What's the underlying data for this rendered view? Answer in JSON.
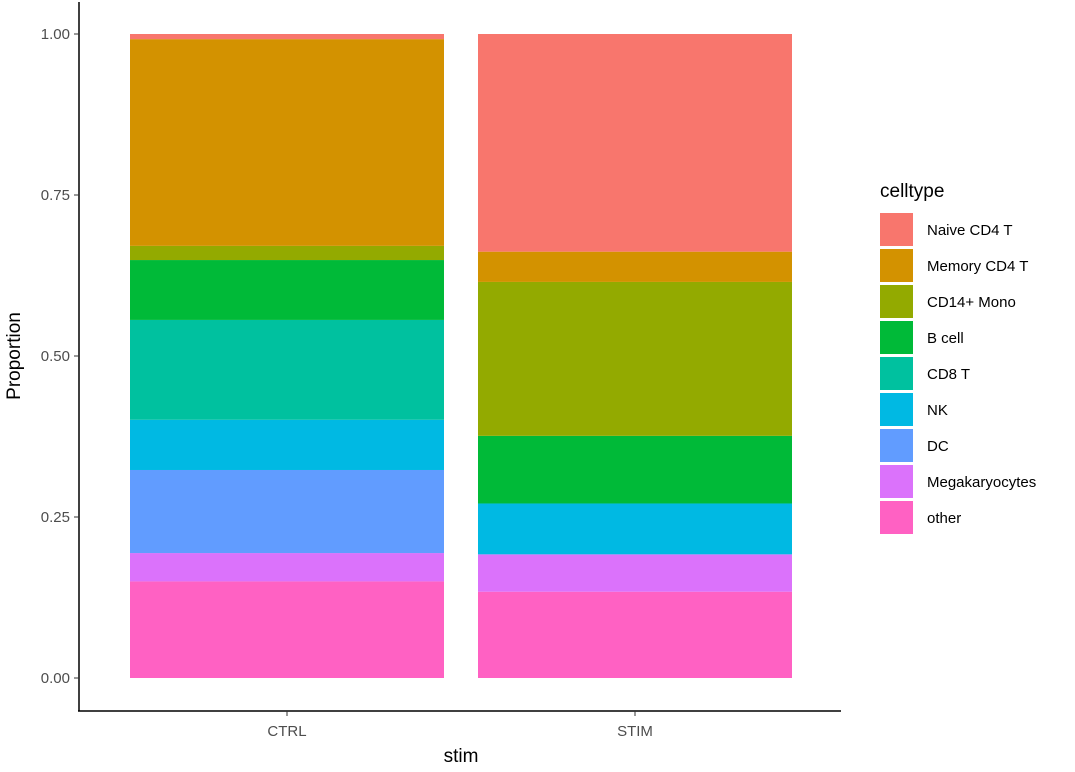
{
  "chart_data": {
    "type": "bar",
    "stacked": true,
    "xlabel": "stim",
    "ylabel": "Proportion",
    "ylim": [
      0,
      1
    ],
    "yticks": [
      "0.00",
      "0.25",
      "0.50",
      "0.75",
      "1.00"
    ],
    "ytick_values": [
      0,
      0.25,
      0.5,
      0.75,
      1.0
    ],
    "categories": [
      "CTRL",
      "STIM"
    ],
    "grid": false,
    "legend": {
      "title": "celltype",
      "placement": "right"
    },
    "series": [
      {
        "name": "Naive CD4 T",
        "color": "#F8766D",
        "values": [
          0.008,
          0.338
        ]
      },
      {
        "name": "Memory CD4 T",
        "color": "#D39200",
        "values": [
          0.321,
          0.047
        ]
      },
      {
        "name": "CD14+ Mono",
        "color": "#93AA00",
        "values": [
          0.022,
          0.239
        ]
      },
      {
        "name": "B cell",
        "color": "#00BA38",
        "values": [
          0.093,
          0.105
        ]
      },
      {
        "name": "CD8 T",
        "color": "#00C19F",
        "values": [
          0.155,
          0.0
        ]
      },
      {
        "name": "NK",
        "color": "#00B9E3",
        "values": [
          0.078,
          0.079
        ]
      },
      {
        "name": "DC",
        "color": "#619CFF",
        "values": [
          0.129,
          0.0
        ]
      },
      {
        "name": "Megakaryocytes",
        "color": "#DB72FB",
        "values": [
          0.044,
          0.058
        ]
      },
      {
        "name": "other",
        "color": "#FF61C3",
        "values": [
          0.15,
          0.134
        ]
      }
    ]
  }
}
